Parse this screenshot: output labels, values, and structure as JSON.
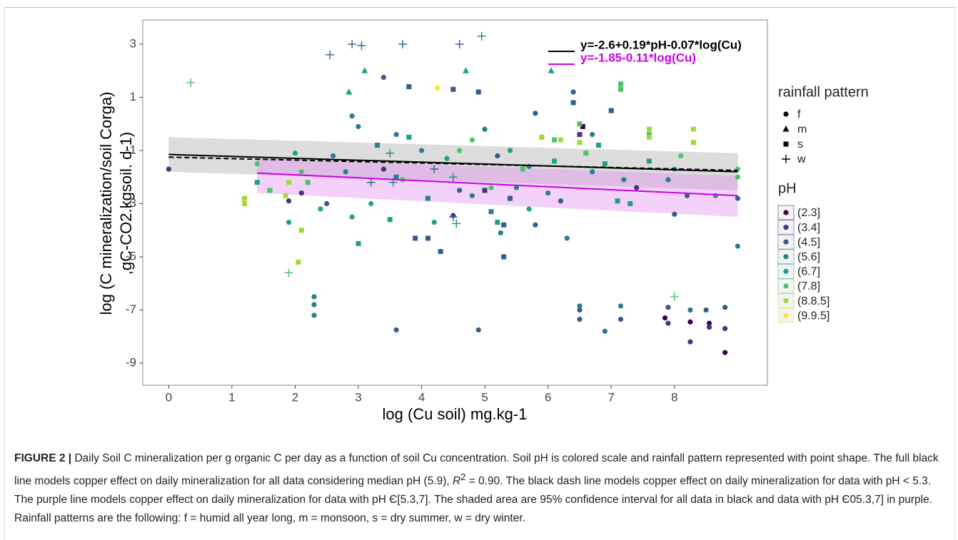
{
  "chart_data": {
    "type": "scatter",
    "xlabel": "log (Cu soil) mg.kg-1",
    "ylabel": [
      "log (C mineralization/soil Corga)",
      ",gC-CO2.kgsoil. d-1)"
    ],
    "xlim": [
      -0.41,
      9.47
    ],
    "ylim": [
      -9.83,
      3.91
    ],
    "xticks": [
      0,
      1,
      2,
      3,
      4,
      5,
      6,
      7,
      8
    ],
    "yticks": [
      3,
      1,
      -1,
      -3,
      -5,
      -7,
      -9
    ],
    "shape_legend": {
      "title": "rainfall pattern",
      "labels": [
        "f",
        "m",
        "s",
        "w"
      ]
    },
    "color_legend_title": "pH",
    "series": [
      {
        "name": "(2.3]",
        "color": "#440154",
        "x": [
          8.8,
          8.25,
          8.55,
          6.55,
          7.85
        ],
        "y": [
          -8.6,
          -7.45,
          -7.5,
          -0.1,
          -7.3
        ],
        "shape": [
          "f",
          "f",
          "f",
          "s",
          "f"
        ]
      },
      {
        "name": "(3.4]",
        "color": "#46337E",
        "x": [
          0,
          1.9,
          2.1,
          4.5,
          8.25,
          8.8,
          8.55,
          7.9,
          6.5,
          5.0,
          7.4,
          3.4
        ],
        "y": [
          -1.7,
          -2.9,
          -2.6,
          -3.45,
          -8.2,
          -7.7,
          -7.65,
          -7.5,
          -0.4,
          -2.5,
          -2.4,
          -1.7
        ],
        "shape": [
          "f",
          "f",
          "f",
          "f",
          "f",
          "f",
          "f",
          "f",
          "s",
          "s",
          "f",
          "f"
        ]
      },
      {
        "name": "(4.5]",
        "color": "#365C8D",
        "x": [
          3.4,
          3.8,
          4.9,
          4.5,
          5.8,
          6.4,
          7.0,
          6.4,
          5.2,
          4.6,
          5.4,
          5.3,
          5.3,
          4.3,
          3.9,
          4.1,
          3.6,
          4.9,
          6.5,
          6.5,
          7.15,
          8.8,
          8.5,
          7.9,
          8.2,
          8.0,
          5.8,
          4.5,
          2.5,
          3.2,
          4.2,
          3.7,
          2.55,
          4.6,
          2.9,
          3.05,
          9.0,
          6.2
        ],
        "y": [
          1.75,
          1.4,
          1.2,
          1.3,
          0.4,
          0.8,
          0.5,
          1.2,
          -1.2,
          -2.5,
          -2.8,
          -5.0,
          -3.8,
          -4.8,
          -4.3,
          -4.3,
          -7.75,
          -7.75,
          -7.0,
          -7.35,
          -7.35,
          -6.9,
          -7.0,
          -6.9,
          -2.7,
          -3.4,
          -3.8,
          -3.5,
          -3.0,
          -2.2,
          -1.7,
          3.0,
          2.6,
          3.0,
          3.0,
          2.95,
          -2.8,
          -2.9
        ],
        "shape": [
          "f",
          "s",
          "s",
          "s",
          "f",
          "s",
          "s",
          "f",
          "f",
          "f",
          "s",
          "s",
          "s",
          "s",
          "s",
          "s",
          "f",
          "f",
          "f",
          "f",
          "f",
          "f",
          "f",
          "f",
          "f",
          "f",
          "f",
          "w",
          "f",
          "w",
          "w",
          "w",
          "w",
          "w",
          "w",
          "w",
          "f",
          "f"
        ]
      },
      {
        "name": "(5.6]",
        "color": "#277F8E",
        "x": [
          3.5,
          3.55,
          4.95,
          4.5,
          4.55,
          2.3,
          2.3,
          2.3,
          6.5,
          6.9,
          7.15,
          8.25,
          2.9,
          3.0,
          3.6,
          4.0,
          4.8,
          5.5,
          6.0,
          5.1,
          4.1,
          3.6,
          2.8,
          5.7,
          6.7,
          7.2,
          7.9,
          6.7,
          5.9,
          5.25,
          6.3,
          9.0,
          3.3,
          2.6,
          5.0
        ],
        "y": [
          -1.1,
          -2.2,
          3.3,
          -2.0,
          -3.75,
          -6.5,
          -6.8,
          -7.2,
          -6.85,
          -7.8,
          -6.85,
          -7.0,
          0.3,
          -0.1,
          -0.4,
          -1.0,
          -2.7,
          -2.4,
          -2.6,
          -3.3,
          -2.8,
          -2.0,
          -1.8,
          -1.6,
          -1.8,
          -2.1,
          -2.1,
          -0.4,
          -0.5,
          -4.1,
          -4.3,
          -4.6,
          -0.8,
          -1.2,
          -0.2
        ],
        "shape": [
          "w",
          "w",
          "w",
          "w",
          "w",
          "f",
          "f",
          "f",
          "f",
          "f",
          "f",
          "f",
          "f",
          "f",
          "f",
          "f",
          "f",
          "f",
          "f",
          "s",
          "s",
          "s",
          "f",
          "f",
          "f",
          "f",
          "f",
          "f",
          "f",
          "f",
          "f",
          "f",
          "s",
          "f",
          "f"
        ]
      },
      {
        "name": "(6.7]",
        "color": "#1FA187",
        "x": [
          3.1,
          2.85,
          4.7,
          6.05,
          3.0,
          3.5,
          3.2,
          2.9,
          2.4,
          1.4,
          1.9,
          2.0,
          3.8,
          4.4,
          5.4,
          6.1,
          6.9,
          7.1,
          7.6,
          8.0,
          8.65,
          4.2,
          5.2,
          5.7,
          6.8,
          7.3
        ],
        "y": [
          2.0,
          1.2,
          2.0,
          2.0,
          -4.5,
          -3.6,
          -3.0,
          -3.5,
          -3.2,
          -2.2,
          -3.7,
          -1.1,
          -0.5,
          -1.3,
          -1.0,
          -1.4,
          -1.5,
          -2.9,
          -1.4,
          -1.7,
          -2.7,
          -3.7,
          -3.7,
          -3.2,
          -0.8,
          -3.0
        ],
        "shape": [
          "m",
          "m",
          "m",
          "m",
          "s",
          "s",
          "f",
          "f",
          "f",
          "s",
          "f",
          "f",
          "s",
          "f",
          "f",
          "s",
          "s",
          "s",
          "s",
          "f",
          "f",
          "f",
          "s",
          "f",
          "s",
          "s"
        ]
      },
      {
        "name": "(7.8]",
        "color": "#4AC16D",
        "x": [
          0.35,
          1.9,
          8.0,
          1.4,
          1.6,
          2.1,
          4.6,
          5.6,
          6.6,
          7.6,
          8.1,
          9.0,
          9.0,
          7.15,
          7.15,
          6.5,
          5.1,
          3.7,
          2.2,
          6.1,
          4.8
        ],
        "y": [
          1.55,
          -5.6,
          -6.5,
          -1.5,
          -2.5,
          -1.8,
          -1.0,
          -1.7,
          -1.1,
          -0.4,
          -1.2,
          -1.7,
          -2.0,
          1.3,
          1.5,
          0.0,
          -2.4,
          -2.1,
          -2.2,
          -0.6,
          -0.6
        ],
        "shape": [
          "w",
          "w",
          "w",
          "f",
          "s",
          "f",
          "f",
          "s",
          "s",
          "s",
          "f",
          "f",
          "f",
          "s",
          "s",
          "s",
          "f",
          "f",
          "s",
          "s",
          "f"
        ]
      },
      {
        "name": "(8.8.5]",
        "color": "#9FDA3A",
        "x": [
          1.2,
          1.2,
          1.85,
          1.9,
          2.1,
          2.05,
          5.9,
          7.6,
          8.3,
          8.3,
          6.2,
          6.5,
          7.6
        ],
        "y": [
          -2.8,
          -3.0,
          -2.7,
          -2.2,
          -4.0,
          -5.2,
          -0.5,
          -0.2,
          -0.2,
          -0.7,
          -0.6,
          -0.7,
          -0.5
        ],
        "shape": [
          "s",
          "s",
          "s",
          "s",
          "s",
          "s",
          "s",
          "s",
          "s",
          "s",
          "s",
          "s",
          "s"
        ]
      },
      {
        "name": "(9.9.5]",
        "color": "#FDE725",
        "x": [
          4.25
        ],
        "y": [
          1.35
        ],
        "shape": [
          "f"
        ]
      }
    ],
    "bands": [
      {
        "color": "#aaaaaa",
        "x": [
          0,
          9
        ],
        "upper": [
          -0.5,
          -1.1
        ],
        "lower": [
          -1.8,
          -2.5
        ]
      },
      {
        "color": "#e08cf0",
        "x": [
          1.4,
          9
        ],
        "upper": [
          -1.3,
          -1.95
        ],
        "lower": [
          -2.6,
          -3.5
        ]
      }
    ],
    "fits": [
      {
        "label": "y=-2.6+0.19*pH-0.07*log(Cu)",
        "color": "#000000",
        "dash": false,
        "x": [
          0,
          9
        ],
        "y": [
          -1.15,
          -1.8
        ]
      },
      {
        "color": "#000000",
        "dash": true,
        "x": [
          0,
          9
        ],
        "y": [
          -1.25,
          -1.75
        ]
      },
      {
        "label": "y=-1.85-0.11*log(Cu)",
        "color": "#cc00e6",
        "dash": false,
        "x": [
          1.4,
          9
        ],
        "y": [
          -1.85,
          -2.7
        ]
      }
    ]
  },
  "caption": {
    "label": "FIGURE 2 |",
    "text1": " Daily Soil C mineralization per g organic C per day as a function of soil Cu concentration. Soil pH is colored scale and rainfall pattern represented with point shape. The full black line models copper effect on daily mineralization for all data considering median pH (5.9), ",
    "r": "R",
    "sup": "2",
    "text2": " = 0.90. The black dash line models copper effect on daily mineralization for data with pH < 5.3. The purple line models copper effect on daily mineralization for data with pH Є[5.3,7]. The shaded area are 95% confidence interval for all data in black and data with pH Є05.3,7] in purple. Rainfall patterns are the following: f = humid all year long, m = monsoon, s = dry summer, w = dry winter."
  }
}
